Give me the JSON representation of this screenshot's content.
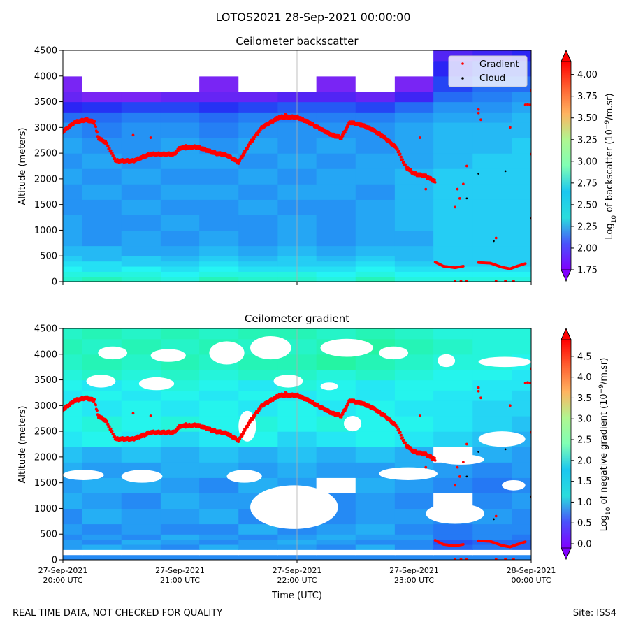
{
  "suptitle": "LOTOS2021 28-Sep-2021 00:00:00",
  "footer": {
    "left": "REAL TIME DATA, NOT CHECKED FOR QUALITY",
    "right": "Site: ISS4"
  },
  "colors": {
    "gradient_marker": "#ff0000",
    "cloud_marker": "#000000",
    "grid": "#b0b0b0",
    "no_data": "#ffffff"
  },
  "chart_data": [
    {
      "type": "heatmap",
      "title": "Ceilometer backscatter",
      "ylabel": "Altitude (meters)",
      "ylim": [
        0,
        4500
      ],
      "yticks": [
        "0",
        "500",
        "1000",
        "1500",
        "2000",
        "2500",
        "3000",
        "3500",
        "4000",
        "4500"
      ],
      "xlim_hours": [
        20,
        24
      ],
      "colorbar": {
        "label": "Log10 of backscatter (10⁻⁹/m.sr)",
        "min": 1.75,
        "max": 4.15,
        "ticks": [
          "1.75",
          "2.00",
          "2.25",
          "2.50",
          "2.75",
          "3.00",
          "3.25",
          "3.50",
          "3.75",
          "4.00"
        ],
        "tick_values": [
          1.75,
          2.0,
          2.25,
          2.5,
          2.75,
          3.0,
          3.25,
          3.5,
          3.75,
          4.0
        ],
        "extend": "both"
      },
      "legend": {
        "location": "top-right",
        "entries": [
          "Gradient",
          "Cloud"
        ]
      },
      "field": {
        "rows_altitude": [
          0,
          100,
          200,
          300,
          400,
          500,
          700,
          1000,
          1300,
          1600,
          1900,
          2200,
          2500,
          2800,
          3100,
          3300,
          3500,
          3700,
          4000,
          4300
        ],
        "cols_time_hours": [
          20.0,
          20.33,
          20.67,
          21.0,
          21.33,
          21.67,
          22.0,
          22.33,
          22.67,
          23.0,
          23.33,
          23.67,
          24.0
        ],
        "values": [
          [
            2.65,
            2.7,
            2.65,
            2.6,
            2.7,
            2.65,
            2.65,
            2.6,
            2.7,
            2.6,
            2.6,
            2.6,
            2.6
          ],
          [
            2.6,
            2.6,
            2.6,
            2.55,
            2.6,
            2.6,
            2.6,
            2.55,
            2.6,
            2.55,
            2.55,
            2.55,
            2.55
          ],
          [
            2.55,
            2.5,
            2.55,
            2.5,
            2.55,
            2.5,
            2.5,
            2.5,
            2.55,
            2.5,
            2.5,
            2.5,
            2.5
          ],
          [
            2.5,
            2.5,
            2.45,
            2.45,
            2.5,
            2.45,
            2.45,
            2.45,
            2.5,
            2.45,
            2.45,
            2.45,
            2.45
          ],
          [
            2.45,
            2.4,
            2.45,
            2.4,
            2.45,
            2.4,
            2.45,
            2.4,
            2.45,
            2.4,
            2.45,
            2.45,
            2.45
          ],
          [
            2.4,
            2.4,
            2.35,
            2.35,
            2.4,
            2.35,
            2.4,
            2.35,
            2.4,
            2.4,
            2.45,
            2.45,
            2.45
          ],
          [
            2.35,
            2.3,
            2.35,
            2.3,
            2.35,
            2.3,
            2.35,
            2.3,
            2.35,
            2.35,
            2.45,
            2.45,
            2.45
          ],
          [
            2.35,
            2.3,
            2.3,
            2.35,
            2.3,
            2.3,
            2.35,
            2.3,
            2.35,
            2.4,
            2.45,
            2.45,
            2.45
          ],
          [
            2.3,
            2.3,
            2.35,
            2.3,
            2.3,
            2.35,
            2.3,
            2.3,
            2.35,
            2.4,
            2.45,
            2.45,
            2.45
          ],
          [
            2.3,
            2.35,
            2.3,
            2.35,
            2.35,
            2.3,
            2.35,
            2.35,
            2.3,
            2.4,
            2.45,
            2.45,
            2.45
          ],
          [
            2.35,
            2.3,
            2.35,
            2.3,
            2.3,
            2.35,
            2.3,
            2.35,
            2.35,
            2.4,
            2.45,
            2.45,
            2.45
          ],
          [
            2.3,
            2.35,
            2.3,
            2.35,
            2.35,
            2.3,
            2.35,
            2.3,
            2.35,
            2.35,
            2.4,
            2.45,
            2.45
          ],
          [
            2.35,
            2.3,
            2.3,
            2.35,
            2.3,
            2.35,
            2.3,
            2.35,
            2.3,
            2.35,
            2.4,
            2.4,
            2.45
          ],
          [
            2.3,
            2.25,
            2.3,
            2.3,
            2.25,
            2.3,
            2.3,
            2.3,
            2.3,
            2.35,
            2.4,
            2.4,
            2.4
          ],
          [
            2.2,
            2.2,
            2.25,
            2.25,
            2.2,
            2.25,
            2.25,
            2.25,
            2.25,
            2.3,
            2.35,
            2.35,
            2.4
          ],
          [
            2.0,
            2.05,
            2.1,
            2.1,
            2.05,
            2.1,
            2.15,
            2.15,
            2.1,
            2.2,
            2.3,
            2.3,
            2.35
          ],
          [
            1.85,
            1.8,
            1.8,
            1.85,
            1.85,
            1.85,
            1.9,
            1.9,
            1.85,
            1.95,
            2.2,
            2.25,
            2.3
          ],
          [
            1.8,
            null,
            null,
            null,
            1.8,
            null,
            null,
            1.8,
            null,
            1.8,
            2.1,
            2.2,
            2.2
          ],
          [
            null,
            null,
            null,
            null,
            null,
            null,
            null,
            null,
            null,
            null,
            2.0,
            2.1,
            2.1
          ],
          [
            null,
            null,
            null,
            null,
            null,
            null,
            null,
            null,
            null,
            null,
            1.9,
            1.95,
            2.0
          ]
        ]
      }
    },
    {
      "type": "heatmap",
      "title": "Ceilometer gradient",
      "ylabel": "Altitude (meters)",
      "xlabel": "Time (UTC)",
      "ylim": [
        0,
        4500
      ],
      "yticks": [
        "0",
        "500",
        "1000",
        "1500",
        "2000",
        "2500",
        "3000",
        "3500",
        "4000",
        "4500"
      ],
      "xlim_hours": [
        20,
        24
      ],
      "xticks": [
        {
          "date": "27-Sep-2021",
          "time": "20:00 UTC"
        },
        {
          "date": "27-Sep-2021",
          "time": "21:00 UTC"
        },
        {
          "date": "27-Sep-2021",
          "time": "22:00 UTC"
        },
        {
          "date": "27-Sep-2021",
          "time": "23:00 UTC"
        },
        {
          "date": "28-Sep-2021",
          "time": "00:00 UTC"
        }
      ],
      "colorbar": {
        "label": "Log10 of negative gradient (10⁻⁹/m.sr)",
        "min": -0.1,
        "max": 4.9,
        "ticks": [
          "0.0",
          "0.5",
          "1.0",
          "1.5",
          "2.0",
          "2.5",
          "3.0",
          "3.5",
          "4.0",
          "4.5"
        ],
        "tick_values": [
          0.0,
          0.5,
          1.0,
          1.5,
          2.0,
          2.5,
          3.0,
          3.5,
          4.0,
          4.5
        ],
        "extend": "both"
      },
      "field": {
        "rows_altitude": [
          0,
          100,
          200,
          300,
          400,
          500,
          700,
          1000,
          1300,
          1600,
          1900,
          2200,
          2500,
          2800,
          3100,
          3300,
          3500,
          3700,
          4000,
          4300
        ],
        "cols_time_hours": [
          20.0,
          20.33,
          20.67,
          21.0,
          21.33,
          21.67,
          22.0,
          22.33,
          22.67,
          23.0,
          23.33,
          23.67,
          24.0
        ],
        "values": [
          [
            1.0,
            1.0,
            1.0,
            1.0,
            1.0,
            1.0,
            1.0,
            1.0,
            1.0,
            1.0,
            1.0,
            1.0,
            1.0
          ],
          [
            null,
            null,
            null,
            null,
            null,
            null,
            null,
            null,
            null,
            null,
            null,
            null,
            null
          ],
          [
            1.1,
            1.2,
            1.1,
            1.0,
            1.2,
            1.1,
            1.1,
            1.0,
            1.2,
            1.0,
            0.8,
            0.9,
            0.8
          ],
          [
            1.1,
            1.0,
            1.2,
            1.1,
            1.0,
            1.1,
            1.2,
            1.1,
            1.0,
            1.0,
            0.7,
            0.8,
            0.8
          ],
          [
            1.0,
            1.1,
            1.0,
            1.2,
            1.1,
            1.0,
            1.1,
            1.2,
            1.1,
            1.1,
            0.9,
            1.0,
            0.9
          ],
          [
            1.1,
            1.0,
            1.1,
            1.0,
            1.0,
            1.2,
            1.0,
            1.1,
            1.2,
            1.0,
            0.9,
            1.0,
            1.0
          ],
          [
            1.0,
            1.2,
            1.1,
            1.1,
            1.2,
            1.0,
            1.1,
            1.0,
            1.1,
            1.1,
            1.0,
            1.1,
            1.0
          ],
          [
            1.2,
            1.1,
            1.0,
            1.2,
            1.1,
            1.1,
            0.9,
            1.0,
            1.1,
            1.0,
            null,
            1.0,
            1.1
          ],
          [
            1.1,
            1.2,
            1.2,
            1.1,
            1.0,
            1.2,
            1.1,
            null,
            1.2,
            1.1,
            1.0,
            0.9,
            1.0
          ],
          [
            1.2,
            1.1,
            1.1,
            1.2,
            1.2,
            1.1,
            1.2,
            1.1,
            1.1,
            1.2,
            1.1,
            1.0,
            1.1
          ],
          [
            1.3,
            1.2,
            1.3,
            1.2,
            1.3,
            1.2,
            1.3,
            1.2,
            1.3,
            1.2,
            null,
            1.2,
            1.1
          ],
          [
            1.5,
            1.6,
            1.5,
            1.4,
            1.5,
            1.6,
            1.4,
            1.5,
            1.6,
            1.5,
            1.4,
            1.3,
            1.2
          ],
          [
            1.6,
            1.7,
            1.6,
            1.7,
            1.6,
            1.7,
            1.6,
            1.7,
            1.6,
            1.6,
            1.5,
            1.4,
            1.3
          ],
          [
            1.6,
            1.5,
            1.6,
            1.5,
            1.6,
            1.5,
            1.6,
            1.5,
            1.6,
            1.5,
            1.5,
            1.4,
            1.4
          ],
          [
            1.5,
            1.6,
            1.5,
            1.6,
            1.5,
            1.6,
            1.5,
            1.6,
            1.5,
            1.6,
            1.5,
            1.5,
            1.4
          ],
          [
            1.6,
            1.5,
            1.6,
            1.7,
            1.6,
            1.5,
            1.7,
            1.6,
            1.5,
            1.6,
            1.6,
            1.5,
            1.5
          ],
          [
            1.7,
            1.8,
            1.7,
            1.8,
            1.7,
            1.8,
            1.8,
            1.7,
            1.8,
            1.7,
            1.6,
            1.6,
            1.5
          ],
          [
            1.8,
            1.9,
            1.8,
            1.9,
            1.8,
            1.9,
            1.9,
            2.0,
            1.9,
            1.8,
            1.7,
            1.7,
            1.6
          ],
          [
            1.9,
            1.8,
            1.9,
            1.8,
            1.9,
            1.8,
            1.8,
            1.9,
            2.0,
            1.9,
            1.8,
            1.7,
            1.7
          ],
          [
            1.8,
            1.9,
            1.8,
            1.9,
            1.8,
            1.9,
            1.9,
            1.8,
            1.9,
            1.8,
            1.7,
            1.7,
            1.7
          ]
        ]
      },
      "no_data_patches": [
        {
          "t0": 20.3,
          "t1": 20.55,
          "z0": 3900,
          "z1": 4150
        },
        {
          "t0": 20.75,
          "t1": 21.05,
          "z0": 3850,
          "z1": 4100
        },
        {
          "t0": 21.25,
          "t1": 21.55,
          "z0": 3800,
          "z1": 4250
        },
        {
          "t0": 21.6,
          "t1": 21.95,
          "z0": 3900,
          "z1": 4350
        },
        {
          "t0": 22.2,
          "t1": 22.65,
          "z0": 3950,
          "z1": 4300
        },
        {
          "t0": 22.7,
          "t1": 22.95,
          "z0": 3900,
          "z1": 4150
        },
        {
          "t0": 20.2,
          "t1": 20.45,
          "z0": 3350,
          "z1": 3600
        },
        {
          "t0": 20.65,
          "t1": 20.95,
          "z0": 3300,
          "z1": 3550
        },
        {
          "t0": 21.8,
          "t1": 22.05,
          "z0": 3350,
          "z1": 3600
        },
        {
          "t0": 22.2,
          "t1": 22.35,
          "z0": 3300,
          "z1": 3450
        },
        {
          "t0": 21.5,
          "t1": 21.65,
          "z0": 2300,
          "z1": 2900
        },
        {
          "t0": 22.4,
          "t1": 22.55,
          "z0": 2500,
          "z1": 2800
        },
        {
          "t0": 20.0,
          "t1": 20.35,
          "z0": 1550,
          "z1": 1750
        },
        {
          "t0": 20.5,
          "t1": 20.85,
          "z0": 1500,
          "z1": 1750
        },
        {
          "t0": 21.4,
          "t1": 21.7,
          "z0": 1500,
          "z1": 1750
        },
        {
          "t0": 22.7,
          "t1": 23.2,
          "z0": 1550,
          "z1": 1800
        },
        {
          "t0": 21.6,
          "t1": 22.35,
          "z0": 600,
          "z1": 1450
        },
        {
          "t0": 23.1,
          "t1": 23.6,
          "z0": 700,
          "z1": 1100
        },
        {
          "t0": 23.75,
          "t1": 23.95,
          "z0": 1350,
          "z1": 1550
        },
        {
          "t0": 23.2,
          "t1": 23.6,
          "z0": 1850,
          "z1": 2050
        },
        {
          "t0": 23.55,
          "t1": 23.95,
          "z0": 2200,
          "z1": 2500
        },
        {
          "t0": 23.2,
          "t1": 23.35,
          "z0": 3750,
          "z1": 4000
        },
        {
          "t0": 23.55,
          "t1": 24.0,
          "z0": 3750,
          "z1": 3950
        }
      ],
      "legend_ghost": {
        "location": "top-right"
      }
    }
  ],
  "gradient_series": {
    "name": "Gradient",
    "t_hours": [
      20.0,
      20.1,
      20.2,
      20.27,
      20.3,
      20.37,
      20.45,
      20.6,
      20.75,
      20.95,
      21.0,
      21.15,
      21.3,
      21.4,
      21.5,
      21.6,
      21.7,
      21.85,
      22.0,
      22.1,
      22.2,
      22.3,
      22.38,
      22.45,
      22.55,
      22.65,
      22.75,
      22.85,
      22.93,
      23.0,
      23.1,
      23.18
    ],
    "altitude": [
      2920,
      3100,
      3150,
      3100,
      2800,
      2700,
      2350,
      2350,
      2480,
      2480,
      2600,
      2620,
      2500,
      2460,
      2320,
      2700,
      3000,
      3200,
      3200,
      3100,
      2970,
      2850,
      2800,
      3100,
      3050,
      2950,
      2800,
      2600,
      2230,
      2100,
      2050,
      1950
    ],
    "scatter_t": [
      20.6,
      20.75,
      21.05,
      21.9,
      23.05,
      23.1,
      23.35,
      23.37,
      23.39,
      23.42,
      23.45,
      23.55,
      23.55,
      23.57,
      23.7,
      23.82,
      23.95,
      23.97,
      23.99,
      24.0,
      24.0,
      24.0
    ],
    "scatter_z": [
      2850,
      2800,
      2650,
      3260,
      2800,
      1800,
      1450,
      1800,
      1620,
      1900,
      2250,
      3350,
      3280,
      3150,
      850,
      3000,
      3440,
      3450,
      3440,
      3720,
      1230,
      2480
    ],
    "low_segments": [
      {
        "t": [
          23.18,
          23.25,
          23.35,
          23.42
        ],
        "z": [
          380,
          300,
          270,
          300
        ]
      },
      {
        "t": [
          23.55,
          23.65,
          23.75,
          23.82,
          23.88,
          23.95
        ],
        "z": [
          370,
          360,
          280,
          250,
          300,
          350
        ]
      }
    ],
    "surface_hits_t": [
      23.35,
      23.4,
      23.45,
      23.7,
      23.78,
      23.85
    ]
  },
  "cloud_series": {
    "name": "Cloud",
    "t_hours": [
      23.45,
      23.55,
      23.68,
      23.78,
      24.0
    ],
    "altitude": [
      1620,
      2100,
      790,
      2150,
      1230
    ]
  }
}
